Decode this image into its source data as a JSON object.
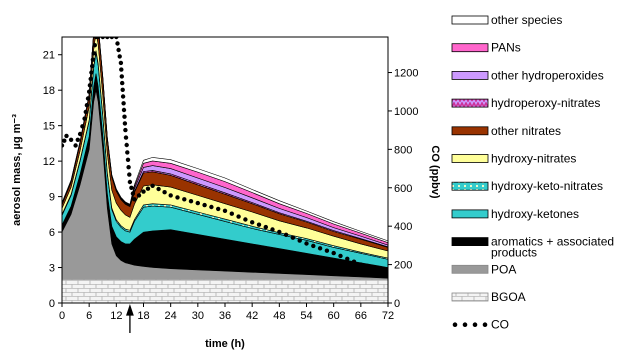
{
  "chart_data": {
    "type": "area",
    "xlabel": "time (h)",
    "ylabel_left": "aerosol mass, µg m⁻³",
    "ylabel_right": "CO (ppbv)",
    "x_ticks": [
      0,
      6,
      12,
      18,
      24,
      30,
      36,
      42,
      48,
      54,
      60,
      66,
      72
    ],
    "x_tick_labels": [
      "0",
      "6",
      "12",
      "18",
      "24",
      "30",
      "36",
      "42",
      "48",
      "54",
      "60",
      "66",
      "72"
    ],
    "y_left_ticks": [
      0,
      3,
      6,
      9,
      12,
      15,
      18,
      21
    ],
    "y_left_tick_labels": [
      "0",
      "3",
      "6",
      "9",
      "12",
      "15",
      "18",
      "21"
    ],
    "y_right_ticks": [
      0,
      200,
      400,
      600,
      800,
      1000,
      1200
    ],
    "y_right_tick_labels": [
      "0",
      "200",
      "400",
      "600",
      "800",
      "1000",
      "1200"
    ],
    "xlim": [
      0,
      72
    ],
    "ylim_left": [
      0,
      22.5
    ],
    "ylim_right": [
      0,
      1385
    ],
    "arrow_x": 15,
    "x": [
      0,
      2,
      4,
      6,
      7,
      7.5,
      8,
      9,
      10,
      11,
      12,
      13,
      14,
      15,
      16,
      18,
      20,
      24,
      30,
      36,
      42,
      48,
      54,
      60,
      66,
      72
    ],
    "series": [
      {
        "name": "BGOA",
        "stack": "stacked",
        "colors": {
          "fill": "#f2f2f2",
          "stroke": "#888888"
        },
        "values": [
          2,
          2,
          2,
          2,
          2,
          2,
          2,
          2,
          2,
          2,
          2,
          2,
          2,
          2,
          2,
          2,
          2,
          2,
          2,
          2,
          2,
          2,
          2,
          2,
          2,
          2
        ]
      },
      {
        "name": "POA",
        "colors": {
          "fill": "#999999",
          "stroke": "#999999"
        },
        "values": [
          4,
          5.5,
          8,
          11,
          15,
          16,
          15,
          11,
          6,
          3,
          2,
          1.6,
          1.4,
          1.3,
          1.2,
          1.1,
          1.0,
          0.9,
          0.8,
          0.7,
          0.6,
          0.5,
          0.4,
          0.3,
          0.2,
          0.1
        ]
      },
      {
        "name": "aromatics + associated products",
        "colors": {
          "fill": "#000000",
          "stroke": "#000000"
        },
        "values": [
          0.6,
          0.7,
          0.9,
          1.1,
          1.3,
          1.4,
          1.3,
          1.2,
          1.3,
          1.5,
          1.6,
          1.6,
          1.6,
          1.7,
          2.2,
          2.9,
          3.1,
          3.3,
          3.0,
          2.7,
          2.4,
          2.1,
          1.8,
          1.5,
          1.2,
          0.9
        ]
      },
      {
        "name": "hydroxy-ketones",
        "colors": {
          "fill": "#33cccc",
          "stroke": "#000000"
        },
        "values": [
          0.8,
          0.9,
          1.1,
          1.3,
          1.6,
          1.8,
          1.8,
          1.6,
          1.6,
          1.4,
          1.3,
          1.2,
          1.1,
          1.0,
          1.5,
          2.1,
          2.1,
          1.9,
          1.7,
          1.5,
          1.3,
          1.2,
          1.1,
          0.9,
          0.8,
          0.7
        ]
      },
      {
        "name": "hydroxy-keto-nitrates",
        "colors": {
          "fill": "#33cccc",
          "stroke": "#000000",
          "dots": "#ffffcc"
        },
        "values": [
          0.1,
          0.1,
          0.1,
          0.1,
          0.15,
          0.15,
          0.15,
          0.15,
          0.15,
          0.15,
          0.15,
          0.15,
          0.15,
          0.15,
          0.15,
          0.2,
          0.2,
          0.2,
          0.2,
          0.2,
          0.2,
          0.15,
          0.15,
          0.15,
          0.1,
          0.1
        ]
      },
      {
        "name": "hydroxy-nitrates",
        "colors": {
          "fill": "#ffff99",
          "stroke": "#000000"
        },
        "values": [
          0.5,
          0.6,
          0.8,
          1.1,
          1.4,
          1.6,
          1.6,
          1.6,
          1.6,
          1.5,
          1.4,
          1.3,
          1.2,
          1.1,
          1.3,
          1.6,
          1.6,
          1.5,
          1.4,
          1.3,
          1.2,
          1.0,
          0.9,
          0.8,
          0.7,
          0.6
        ]
      },
      {
        "name": "other nitrates",
        "colors": {
          "fill": "#993300",
          "stroke": "#000000"
        },
        "values": [
          0.3,
          0.4,
          0.6,
          0.9,
          1.3,
          1.5,
          1.5,
          1.4,
          1.2,
          1.1,
          1.0,
          0.9,
          0.9,
          0.9,
          1.0,
          1.1,
          1.1,
          1.0,
          0.9,
          0.8,
          0.7,
          0.6,
          0.5,
          0.4,
          0.4,
          0.3
        ]
      },
      {
        "name": "hydroperoxy-nitrates",
        "colors": {
          "fill": "#cc99ff",
          "stroke": "#000000",
          "zigzag": "#cc3399"
        },
        "values": [
          0.05,
          0.05,
          0.05,
          0.05,
          0.05,
          0.05,
          0.05,
          0.05,
          0.05,
          0.05,
          0.05,
          0.05,
          0.05,
          0.05,
          0.1,
          0.12,
          0.12,
          0.12,
          0.12,
          0.12,
          0.1,
          0.1,
          0.08,
          0.08,
          0.06,
          0.05
        ]
      },
      {
        "name": "other hydroperoxides",
        "colors": {
          "fill": "#cc99ff",
          "stroke": "#000000"
        },
        "values": [
          0.05,
          0.05,
          0.05,
          0.05,
          0.05,
          0.05,
          0.05,
          0.05,
          0.05,
          0.05,
          0.05,
          0.05,
          0.05,
          0.05,
          0.2,
          0.35,
          0.4,
          0.45,
          0.45,
          0.45,
          0.4,
          0.35,
          0.3,
          0.25,
          0.2,
          0.15
        ]
      },
      {
        "name": "PANs",
        "colors": {
          "fill": "#ff66cc",
          "stroke": "#000000"
        },
        "values": [
          0.05,
          0.05,
          0.05,
          0.05,
          0.05,
          0.05,
          0.05,
          0.05,
          0.05,
          0.05,
          0.05,
          0.05,
          0.05,
          0.05,
          0.2,
          0.35,
          0.4,
          0.45,
          0.5,
          0.5,
          0.45,
          0.4,
          0.35,
          0.3,
          0.25,
          0.2
        ]
      },
      {
        "name": "other species",
        "colors": {
          "fill": "#ffffff",
          "stroke": "#000000"
        },
        "values": [
          0.05,
          0.05,
          0.05,
          0.05,
          0.05,
          0.05,
          0.05,
          0.05,
          0.05,
          0.05,
          0.05,
          0.05,
          0.05,
          0.05,
          0.15,
          0.25,
          0.3,
          0.3,
          0.3,
          0.3,
          0.25,
          0.25,
          0.2,
          0.2,
          0.15,
          0.15
        ]
      }
    ],
    "co": {
      "name": "CO",
      "axis": "right",
      "color": "#000000",
      "x": [
        0,
        1,
        2,
        3,
        4,
        5,
        6,
        7,
        7.5,
        8,
        9,
        10,
        11,
        12,
        13,
        14,
        15,
        16,
        18,
        20,
        24,
        30,
        36,
        42,
        48,
        54,
        60,
        66,
        72
      ],
      "values": [
        820,
        870,
        850,
        820,
        880,
        960,
        1100,
        1300,
        1385,
        1385,
        1385,
        1385,
        1385,
        1385,
        1250,
        900,
        630,
        540,
        580,
        610,
        560,
        520,
        480,
        420,
        370,
        310,
        260,
        200,
        170
      ]
    }
  },
  "legend": {
    "entries": [
      {
        "label": "other species",
        "swatch": "other species"
      },
      {
        "label": "PANs",
        "swatch": "PANs"
      },
      {
        "label": "other hydroperoxides",
        "swatch": "other hydroperoxides"
      },
      {
        "label": "hydroperoxy-nitrates",
        "swatch": "hydroperoxy-nitrates"
      },
      {
        "label": "other nitrates",
        "swatch": "other nitrates"
      },
      {
        "label": "hydroxy-nitrates",
        "swatch": "hydroxy-nitrates"
      },
      {
        "label": "hydroxy-keto-nitrates",
        "swatch": "hydroxy-keto-nitrates"
      },
      {
        "label": "hydroxy-ketones",
        "swatch": "hydroxy-ketones"
      },
      {
        "label": "aromatics + associated",
        "line2": "products",
        "swatch": "aromatics + associated products"
      },
      {
        "label": "POA",
        "swatch": "POA"
      },
      {
        "label": "BGOA",
        "swatch": "BGOA"
      },
      {
        "label": "CO",
        "swatch": "CO"
      }
    ]
  }
}
